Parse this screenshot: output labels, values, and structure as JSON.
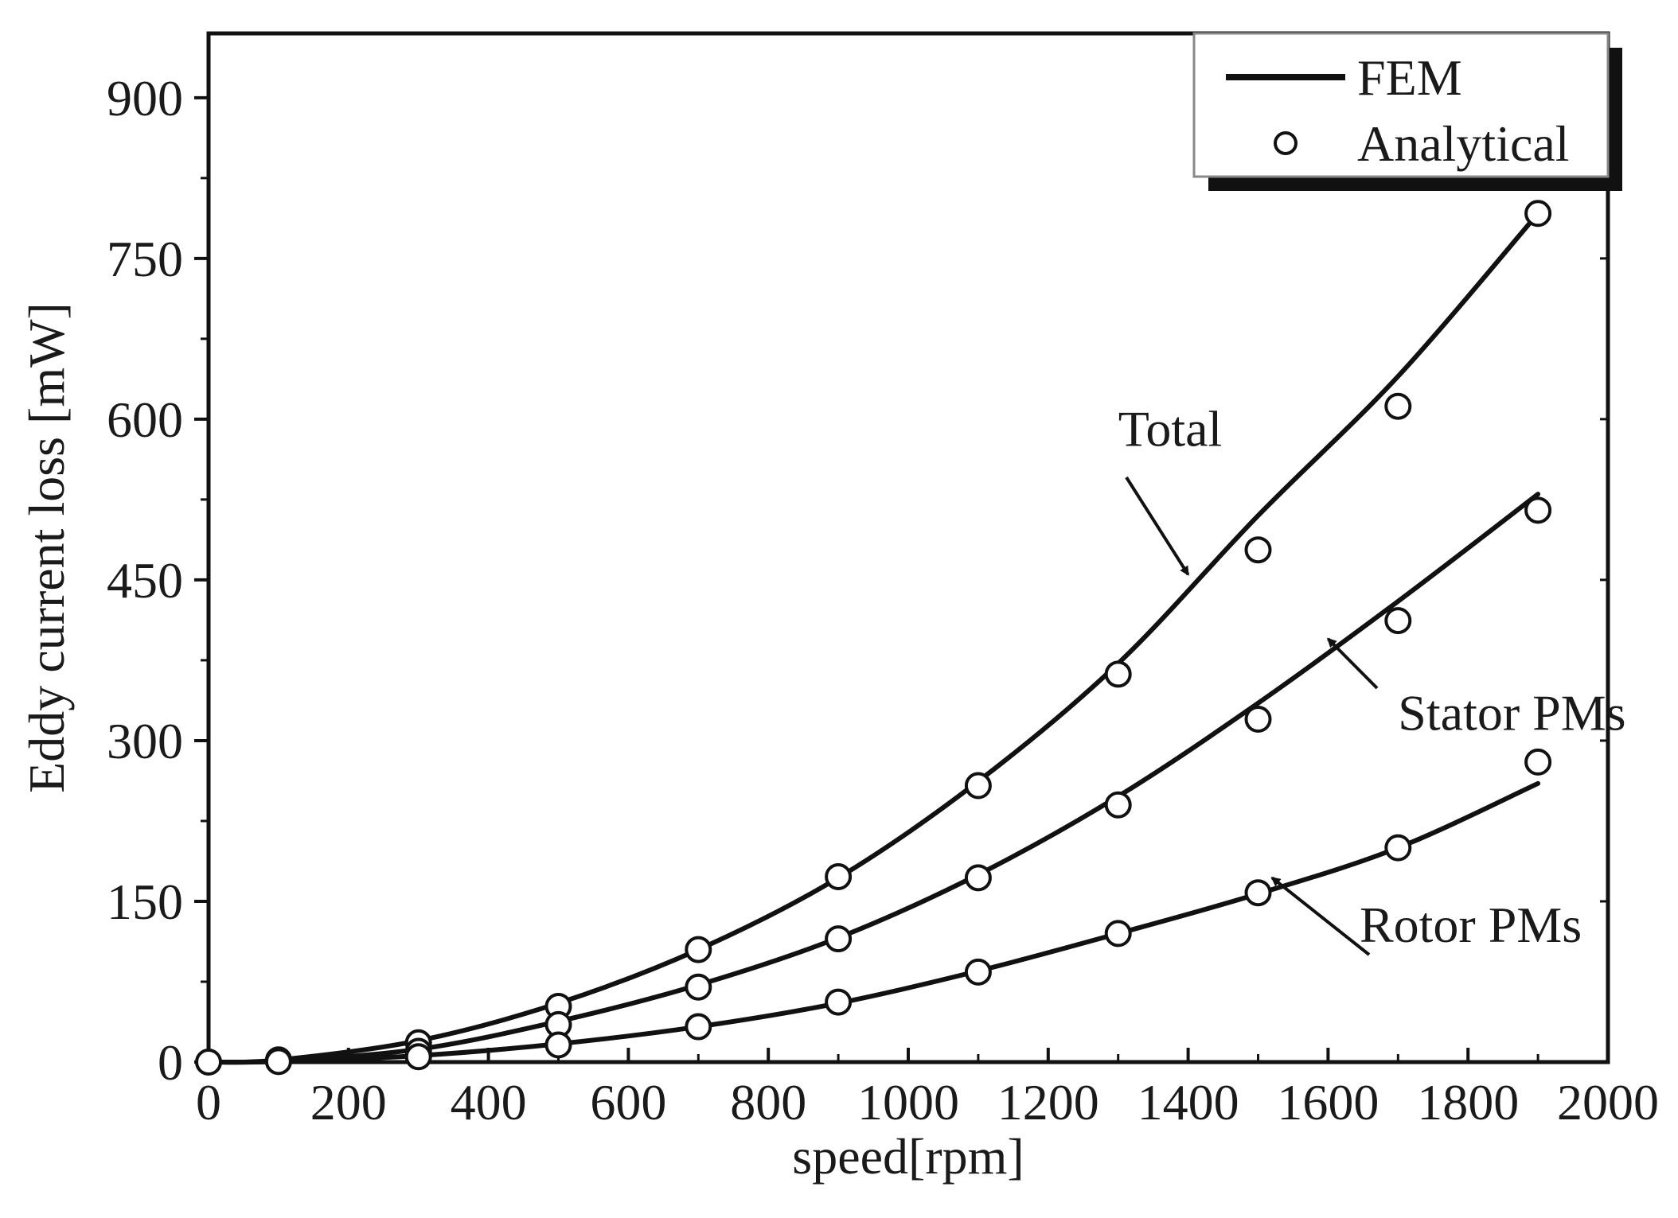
{
  "chart_data": {
    "type": "line",
    "title": "",
    "xlabel": "speed[rpm]",
    "ylabel": "Eddy current loss [mW]",
    "xlim": [
      0,
      2000
    ],
    "ylim": [
      0,
      960
    ],
    "xticks": [
      0,
      200,
      400,
      600,
      800,
      1000,
      1200,
      1400,
      1600,
      1800,
      2000
    ],
    "yticks": [
      0,
      150,
      300,
      450,
      600,
      750,
      900
    ],
    "legend": {
      "placement": "top-right",
      "entries": [
        {
          "label": "FEM",
          "marker": "line"
        },
        {
          "label": "Analytical",
          "marker": "open-circle"
        }
      ]
    },
    "series": [
      {
        "name": "Total",
        "fem": {
          "x": [
            100,
            300,
            500,
            700,
            900,
            1100,
            1300,
            1500,
            1700,
            1900
          ],
          "y": [
            2,
            20,
            55,
            105,
            172,
            262,
            372,
            510,
            640,
            792
          ]
        },
        "analytical": {
          "x": [
            0,
            100,
            300,
            500,
            700,
            900,
            1100,
            1300,
            1500,
            1700,
            1900
          ],
          "y": [
            0,
            2,
            18,
            52,
            105,
            173,
            258,
            362,
            478,
            612,
            792
          ]
        }
      },
      {
        "name": "Stator PMs",
        "fem": {
          "x": [
            100,
            300,
            500,
            700,
            900,
            1100,
            1300,
            1500,
            1700,
            1900
          ],
          "y": [
            1,
            12,
            38,
            72,
            116,
            175,
            248,
            335,
            430,
            530
          ]
        },
        "analytical": {
          "x": [
            100,
            300,
            500,
            700,
            900,
            1100,
            1300,
            1500,
            1700,
            1900
          ],
          "y": [
            1,
            10,
            35,
            70,
            115,
            172,
            240,
            320,
            412,
            515
          ]
        }
      },
      {
        "name": "Rotor PMs",
        "fem": {
          "x": [
            100,
            300,
            500,
            700,
            900,
            1100,
            1300,
            1500,
            1700,
            1900
          ],
          "y": [
            0.5,
            6,
            17,
            33,
            55,
            85,
            120,
            157,
            200,
            260
          ]
        },
        "analytical": {
          "x": [
            100,
            300,
            500,
            700,
            900,
            1100,
            1300,
            1500,
            1700,
            1900
          ],
          "y": [
            0.5,
            5,
            16,
            33,
            56,
            84,
            120,
            158,
            200,
            280
          ]
        }
      }
    ],
    "annotations": [
      {
        "text": "Total",
        "series": "Total",
        "point": [
          1400,
          455
        ]
      },
      {
        "text": "Stator PMs",
        "series": "Stator PMs",
        "point": [
          1600,
          395
        ]
      },
      {
        "text": "Rotor PMs",
        "series": "Rotor PMs",
        "point": [
          1520,
          172
        ]
      }
    ],
    "grid": false
  }
}
